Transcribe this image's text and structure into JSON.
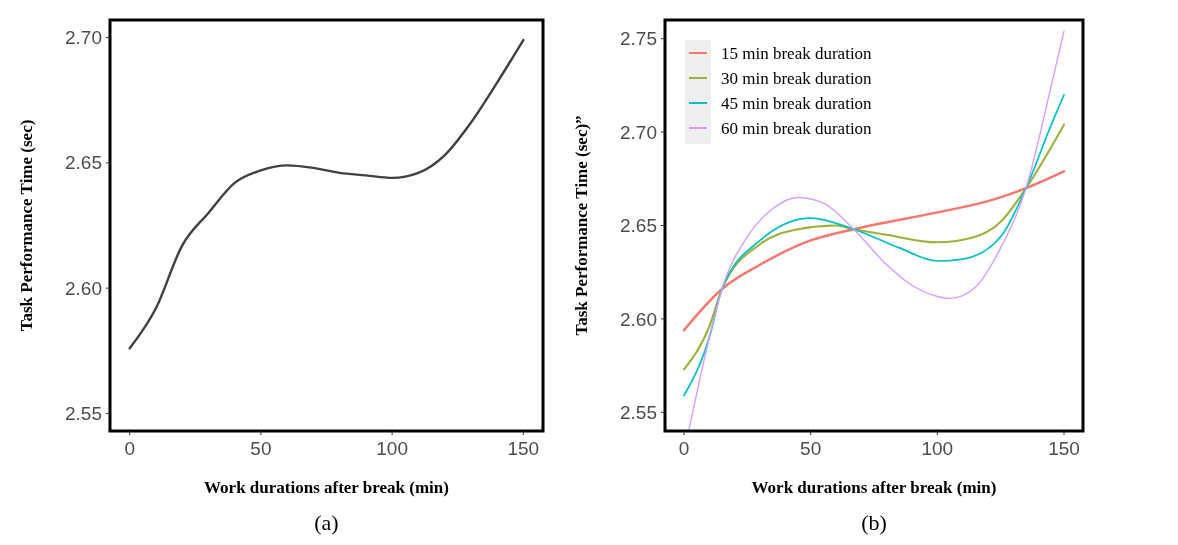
{
  "chart_data": [
    {
      "type": "line",
      "xlabel": "Work durations after break (min)",
      "ylabel": "Task Performance Time (sec)",
      "annotations": [
        "(a)"
      ],
      "xlim": [
        -7.5,
        157.5
      ],
      "ylim": [
        2.543,
        2.707
      ],
      "xticks": [
        0,
        50,
        100,
        150
      ],
      "yticks": [
        {
          "value": 2.55,
          "label": "2.55"
        },
        {
          "value": 2.6,
          "label": "2.60"
        },
        {
          "value": 2.65,
          "label": "2.65"
        },
        {
          "value": 2.7,
          "label": "2.70"
        }
      ],
      "legend": false,
      "series": [
        {
          "color": "#404040",
          "x": [
            0,
            10,
            20,
            30,
            40,
            50,
            60,
            70,
            80,
            90,
            100,
            110,
            120,
            130,
            140,
            150
          ],
          "values": [
            2.576,
            2.592,
            2.617,
            2.63,
            2.642,
            2.647,
            2.649,
            2.648,
            2.646,
            2.645,
            2.644,
            2.646,
            2.653,
            2.666,
            2.682,
            2.699
          ]
        }
      ]
    },
    {
      "type": "line",
      "xlabel": "Work durations after break (min)",
      "ylabel": "Task Performance Time (sec)”",
      "annotations": [
        "(b)"
      ],
      "xlim": [
        -7.5,
        157.5
      ],
      "ylim": [
        2.54,
        2.76
      ],
      "xticks": [
        0,
        50,
        100,
        150
      ],
      "yticks": [
        {
          "value": 2.55,
          "label": "2.55"
        },
        {
          "value": 2.6,
          "label": "2.60"
        },
        {
          "value": 2.65,
          "label": "2.65"
        },
        {
          "value": 2.7,
          "label": "2.70"
        },
        {
          "value": 2.75,
          "label": "2.75"
        }
      ],
      "legend": "top left",
      "series": [
        {
          "name": "15 min break duration",
          "color": "#f8766d",
          "x": [
            0,
            15,
            30,
            50,
            67,
            100,
            120,
            135,
            150
          ],
          "values": [
            2.594,
            2.616,
            2.629,
            2.642,
            2.648,
            2.657,
            2.663,
            2.67,
            2.679
          ]
        },
        {
          "name": "30 min break duration",
          "color": "#9cb13a",
          "x": [
            0,
            10,
            15,
            30,
            45,
            60,
            67,
            80,
            100,
            115,
            125,
            135,
            150
          ],
          "values": [
            2.573,
            2.596,
            2.616,
            2.64,
            2.648,
            2.65,
            2.648,
            2.645,
            2.641,
            2.644,
            2.652,
            2.67,
            2.704
          ]
        },
        {
          "name": "45 min break duration",
          "color": "#00bfc4",
          "x": [
            0,
            10,
            15,
            30,
            50,
            67,
            85,
            100,
            110,
            125,
            135,
            145,
            150
          ],
          "values": [
            2.559,
            2.59,
            2.616,
            2.642,
            2.654,
            2.648,
            2.638,
            2.631,
            2.632,
            2.644,
            2.67,
            2.704,
            2.72
          ]
        },
        {
          "name": "60 min break duration",
          "color": "#d59cff",
          "x": [
            2,
            10,
            15,
            25,
            35,
            45,
            55,
            67,
            80,
            90,
            100,
            105,
            115,
            125,
            135,
            145,
            150
          ],
          "values": [
            2.541,
            2.59,
            2.616,
            2.644,
            2.659,
            2.665,
            2.662,
            2.648,
            2.629,
            2.618,
            2.612,
            2.611,
            2.617,
            2.638,
            2.67,
            2.725,
            2.754
          ]
        }
      ]
    }
  ]
}
